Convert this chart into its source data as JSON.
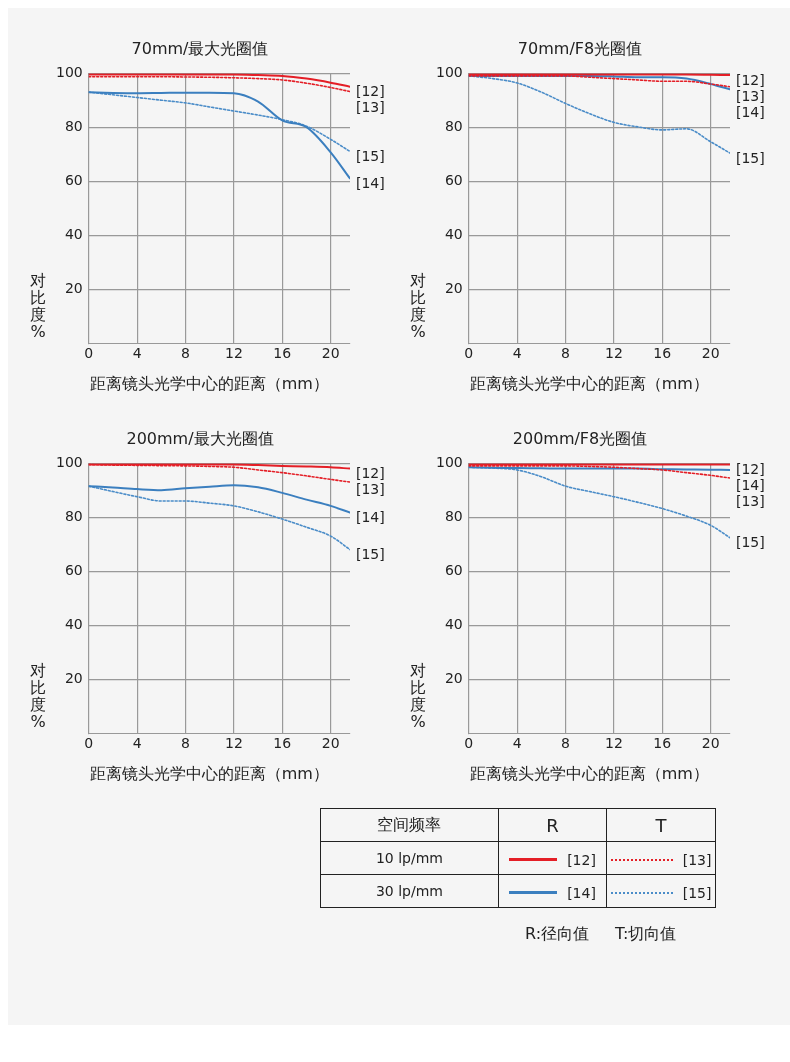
{
  "chart_data": [
    {
      "type": "line",
      "title": "70mm/最大光圈值",
      "xlabel": "距离镜头光学中心的距离（mm）",
      "ylabel": "对比度%",
      "xlim": [
        0,
        21.6
      ],
      "ylim": [
        0,
        100
      ],
      "xticks": [
        0,
        4,
        8,
        12,
        16,
        20
      ],
      "yticks": [
        20,
        40,
        60,
        80,
        100
      ],
      "grid": true,
      "x": [
        0,
        2,
        4,
        6,
        8,
        10,
        12,
        14,
        16,
        18,
        20,
        21.6
      ],
      "series": [
        {
          "name": "[12]",
          "color": "#e41e26",
          "line_style": "solid",
          "values": [
            99.5,
            99.5,
            99.5,
            99.5,
            99.5,
            99.5,
            99.5,
            99.3,
            99,
            98,
            96.5,
            95
          ]
        },
        {
          "name": "[13]",
          "color": "#e41e26",
          "line_style": "dotted",
          "values": [
            98.7,
            98.7,
            98.7,
            98.7,
            98.6,
            98.5,
            98.3,
            98,
            97.5,
            96.3,
            94.7,
            93.2
          ]
        },
        {
          "name": "[14]",
          "color": "#3b7fbf",
          "line_style": "solid",
          "values": [
            92.9,
            92.7,
            92.6,
            92.7,
            92.8,
            92.8,
            92.6,
            89.5,
            82.5,
            80,
            70.7,
            61
          ]
        },
        {
          "name": "[15]",
          "color": "#4a8cc8",
          "line_style": "dotted",
          "values": [
            93,
            92,
            91,
            90,
            89,
            87.5,
            86,
            84.5,
            82.8,
            80.4,
            75.5,
            71
          ]
        }
      ]
    },
    {
      "type": "line",
      "title": "70mm/F8光圈值",
      "xlabel": "距离镜头光学中心的距离（mm）",
      "ylabel": "对比度%",
      "xlim": [
        0,
        21.6
      ],
      "ylim": [
        0,
        100
      ],
      "xticks": [
        0,
        4,
        8,
        12,
        16,
        20
      ],
      "yticks": [
        20,
        40,
        60,
        80,
        100
      ],
      "grid": true,
      "x": [
        0,
        2,
        4,
        6,
        8,
        10,
        12,
        14,
        16,
        18,
        20,
        21.6
      ],
      "series": [
        {
          "name": "[12]",
          "color": "#e41e26",
          "line_style": "solid",
          "values": [
            99.5,
            99.5,
            99.5,
            99.5,
            99.5,
            99.5,
            99.5,
            99.5,
            99.5,
            99.5,
            99.4,
            99.3
          ]
        },
        {
          "name": "[13]",
          "color": "#e41e26",
          "line_style": "dotted",
          "values": [
            99,
            99,
            99,
            99,
            99,
            98.5,
            98,
            97.5,
            97,
            97,
            96,
            95
          ]
        },
        {
          "name": "[14]",
          "color": "#3b7fbf",
          "line_style": "solid",
          "values": [
            99,
            99,
            99,
            99,
            99,
            99,
            98.8,
            98.5,
            98.5,
            98,
            96,
            94
          ]
        },
        {
          "name": "[15]",
          "color": "#4a8cc8",
          "line_style": "dotted",
          "values": [
            99,
            98,
            96.4,
            93,
            88.8,
            85,
            81.8,
            80.1,
            79,
            79.4,
            74.6,
            70.4
          ]
        }
      ]
    },
    {
      "type": "line",
      "title": "200mm/最大光圈值",
      "xlabel": "距离镜头光学中心的距离（mm）",
      "ylabel": "对比度%",
      "xlim": [
        0,
        21.6
      ],
      "ylim": [
        0,
        100
      ],
      "xticks": [
        0,
        4,
        8,
        12,
        16,
        20
      ],
      "yticks": [
        20,
        40,
        60,
        80,
        100
      ],
      "grid": true,
      "x": [
        0,
        2,
        4,
        6,
        8,
        10,
        12,
        14,
        16,
        18,
        20,
        21.6
      ],
      "series": [
        {
          "name": "[12]",
          "color": "#e41e26",
          "line_style": "solid",
          "values": [
            99.5,
            99.5,
            99.5,
            99.5,
            99.5,
            99.5,
            99.5,
            99.3,
            99,
            98.8,
            98.5,
            98
          ]
        },
        {
          "name": "[13]",
          "color": "#e41e26",
          "line_style": "dotted",
          "values": [
            99.5,
            99.3,
            99.2,
            99.1,
            99,
            98.8,
            98.5,
            97.5,
            96.5,
            95.3,
            94,
            93
          ]
        },
        {
          "name": "[14]",
          "color": "#3b7fbf",
          "line_style": "solid",
          "values": [
            91.5,
            91,
            90.4,
            90,
            90.7,
            91.3,
            91.8,
            91.1,
            89,
            86.5,
            84.2,
            81.7
          ]
        },
        {
          "name": "[15]",
          "color": "#4a8cc8",
          "line_style": "dotted",
          "values": [
            91.5,
            89.5,
            87.6,
            86,
            86,
            85.2,
            84.2,
            82,
            79.3,
            76.3,
            73,
            68
          ]
        }
      ]
    },
    {
      "type": "line",
      "title": "200mm/F8光圈值",
      "xlabel": "距离镜头光学中心的距离（mm）",
      "ylabel": "对比度%",
      "xlim": [
        0,
        21.6
      ],
      "ylim": [
        0,
        100
      ],
      "xticks": [
        0,
        4,
        8,
        12,
        16,
        20
      ],
      "yticks": [
        20,
        40,
        60,
        80,
        100
      ],
      "grid": true,
      "x": [
        0,
        2,
        4,
        6,
        8,
        10,
        12,
        14,
        16,
        18,
        20,
        21.6
      ],
      "series": [
        {
          "name": "[12]",
          "color": "#e41e26",
          "line_style": "solid",
          "values": [
            99.5,
            99.5,
            99.5,
            99.5,
            99.5,
            99.5,
            99.5,
            99.5,
            99.5,
            99.5,
            99.5,
            99.5
          ]
        },
        {
          "name": "[13]",
          "color": "#e41e26",
          "line_style": "dotted",
          "values": [
            99,
            99,
            99,
            99,
            99,
            98.8,
            98.5,
            98,
            97.5,
            96.5,
            95.5,
            94.5
          ]
        },
        {
          "name": "[14]",
          "color": "#3b7fbf",
          "line_style": "solid",
          "values": [
            98.5,
            98.3,
            98.2,
            98.1,
            98,
            98,
            98,
            98,
            97.8,
            97.7,
            97.6,
            97.5
          ]
        },
        {
          "name": "[15]",
          "color": "#4a8cc8",
          "line_style": "dotted",
          "values": [
            98.5,
            98.2,
            97.5,
            95,
            91.5,
            89.5,
            87.6,
            85.5,
            83.2,
            80.4,
            77,
            72.4
          ]
        }
      ]
    },
    {
      "type": "other",
      "categories": [
        "10 lp/mm",
        "30 lp/mm"
      ],
      "annotations": [
        "空间频率",
        "R",
        "T",
        "R:径向值",
        "T:切向值"
      ]
    }
  ]
}
